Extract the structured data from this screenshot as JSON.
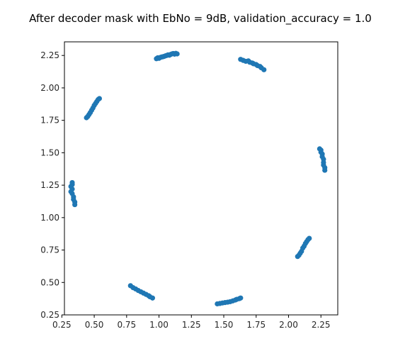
{
  "chart_data": {
    "type": "scatter",
    "title": "After decoder mask with EbNo = 9dB, validation_accuracy = 1.0",
    "xlabel": "",
    "ylabel": "",
    "xlim": [
      0.27,
      2.38
    ],
    "ylim": [
      0.25,
      2.355
    ],
    "grid": false,
    "legend": "none",
    "point_color": "#1f77b4",
    "x_ticks": [
      "0.25",
      "0.50",
      "0.75",
      "1.00",
      "1.25",
      "1.50",
      "1.75",
      "2.00",
      "2.25"
    ],
    "y_ticks": [
      "0.25",
      "0.50",
      "0.75",
      "1.00",
      "1.25",
      "1.50",
      "1.75",
      "2.00",
      "2.25"
    ],
    "clusters": [
      {
        "points": [
          [
            0.98,
            2.225
          ],
          [
            0.99,
            2.232
          ],
          [
            1.0,
            2.228
          ],
          [
            1.01,
            2.235
          ],
          [
            1.02,
            2.238
          ],
          [
            1.03,
            2.24
          ],
          [
            1.04,
            2.243
          ],
          [
            1.05,
            2.247
          ],
          [
            1.06,
            2.25
          ],
          [
            1.07,
            2.255
          ],
          [
            1.08,
            2.252
          ],
          [
            1.09,
            2.258
          ],
          [
            1.1,
            2.262
          ],
          [
            1.11,
            2.265
          ],
          [
            1.12,
            2.26
          ],
          [
            1.13,
            2.266
          ],
          [
            1.14,
            2.262
          ]
        ]
      },
      {
        "points": [
          [
            1.63,
            2.22
          ],
          [
            1.65,
            2.212
          ],
          [
            1.67,
            2.205
          ],
          [
            1.69,
            2.208
          ],
          [
            1.7,
            2.198
          ],
          [
            1.72,
            2.192
          ],
          [
            1.73,
            2.186
          ],
          [
            1.75,
            2.18
          ],
          [
            1.76,
            2.172
          ],
          [
            1.78,
            2.165
          ],
          [
            1.79,
            2.155
          ],
          [
            1.81,
            2.14
          ]
        ]
      },
      {
        "points": [
          [
            0.44,
            1.77
          ],
          [
            0.45,
            1.78
          ],
          [
            0.46,
            1.795
          ],
          [
            0.47,
            1.81
          ],
          [
            0.48,
            1.828
          ],
          [
            0.49,
            1.845
          ],
          [
            0.5,
            1.865
          ],
          [
            0.51,
            1.88
          ],
          [
            0.52,
            1.895
          ],
          [
            0.53,
            1.91
          ],
          [
            0.54,
            1.918
          ]
        ]
      },
      {
        "points": [
          [
            2.24,
            1.53
          ],
          [
            2.25,
            1.52
          ],
          [
            2.25,
            1.505
          ],
          [
            2.26,
            1.49
          ],
          [
            2.26,
            1.47
          ],
          [
            2.27,
            1.45
          ],
          [
            2.27,
            1.425
          ],
          [
            2.27,
            1.405
          ],
          [
            2.28,
            1.385
          ],
          [
            2.28,
            1.365
          ]
        ]
      },
      {
        "points": [
          [
            0.33,
            1.27
          ],
          [
            0.33,
            1.255
          ],
          [
            0.32,
            1.24
          ],
          [
            0.33,
            1.22
          ],
          [
            0.32,
            1.2
          ],
          [
            0.33,
            1.185
          ],
          [
            0.34,
            1.16
          ],
          [
            0.34,
            1.14
          ],
          [
            0.35,
            1.12
          ],
          [
            0.35,
            1.1
          ]
        ]
      },
      {
        "points": [
          [
            2.07,
            0.7
          ],
          [
            2.08,
            0.71
          ],
          [
            2.09,
            0.725
          ],
          [
            2.1,
            0.74
          ],
          [
            2.11,
            0.765
          ],
          [
            2.12,
            0.78
          ],
          [
            2.13,
            0.8
          ],
          [
            2.14,
            0.815
          ],
          [
            2.15,
            0.83
          ],
          [
            2.16,
            0.84
          ]
        ]
      },
      {
        "points": [
          [
            0.78,
            0.475
          ],
          [
            0.8,
            0.46
          ],
          [
            0.82,
            0.45
          ],
          [
            0.84,
            0.438
          ],
          [
            0.86,
            0.428
          ],
          [
            0.88,
            0.418
          ],
          [
            0.9,
            0.408
          ],
          [
            0.92,
            0.398
          ],
          [
            0.93,
            0.39
          ],
          [
            0.95,
            0.38
          ]
        ]
      },
      {
        "points": [
          [
            1.45,
            0.335
          ],
          [
            1.47,
            0.338
          ],
          [
            1.49,
            0.342
          ],
          [
            1.51,
            0.345
          ],
          [
            1.53,
            0.348
          ],
          [
            1.55,
            0.352
          ],
          [
            1.57,
            0.358
          ],
          [
            1.59,
            0.365
          ],
          [
            1.6,
            0.37
          ],
          [
            1.62,
            0.375
          ],
          [
            1.63,
            0.38
          ]
        ]
      }
    ]
  }
}
